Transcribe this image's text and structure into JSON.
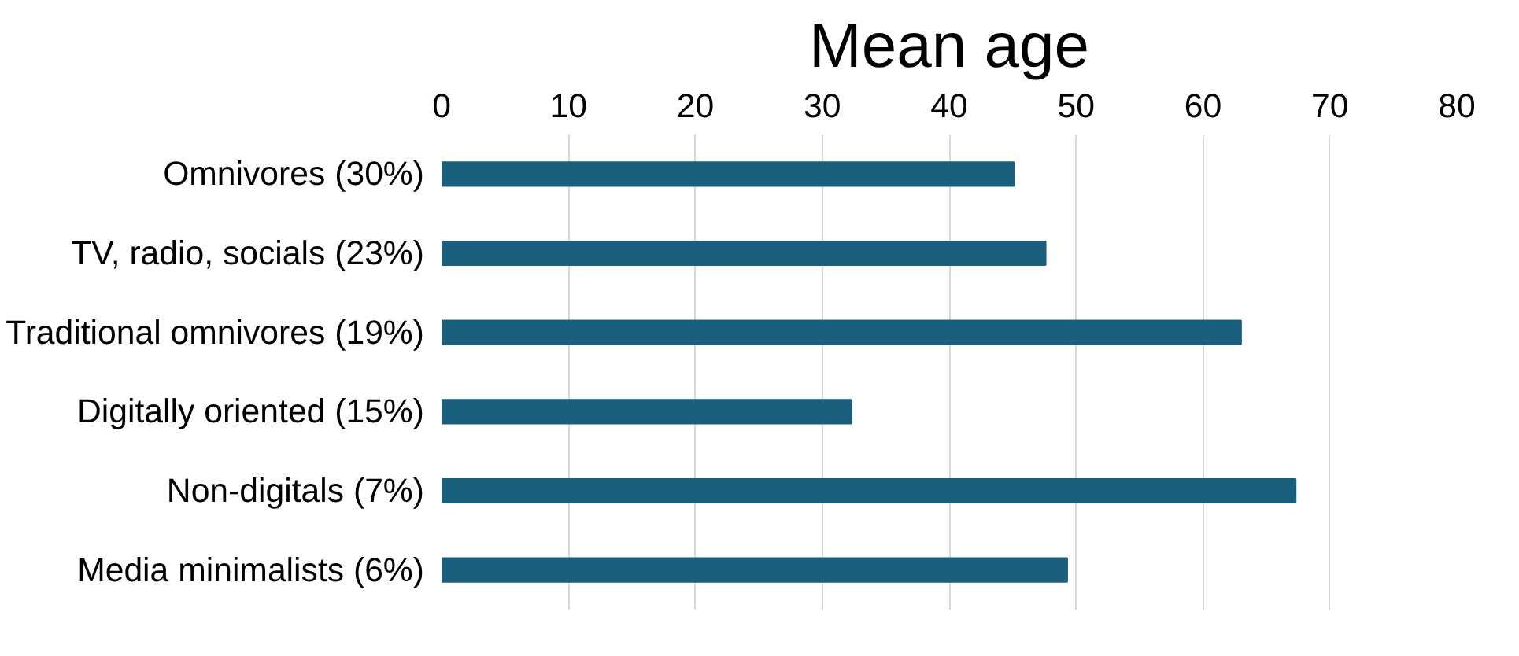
{
  "chart_data": {
    "type": "bar",
    "orientation": "horizontal",
    "title": "Mean age",
    "categories": [
      "Omnivores (30%)",
      "TV, radio, socials (23%)",
      "Traditional omnivores (19%)",
      "Digitally oriented (15%)",
      "Non-digitals (7%)",
      "Media minimalists (6%)"
    ],
    "values": [
      45.1,
      47.6,
      63.0,
      32.3,
      67.3,
      49.3
    ],
    "color": "#1b5f7e",
    "xlim": [
      0,
      80
    ],
    "xticks": [
      0,
      10,
      20,
      30,
      40,
      50,
      60,
      70,
      80
    ],
    "grid": "x"
  }
}
